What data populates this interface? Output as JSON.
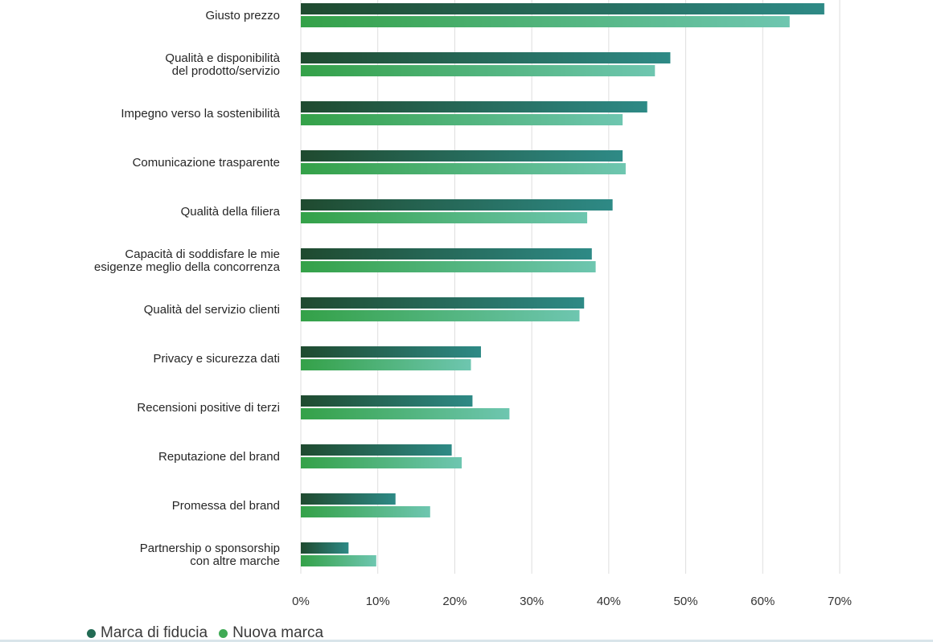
{
  "chart_data": {
    "type": "bar",
    "orientation": "horizontal",
    "categories": [
      "Giusto prezzo",
      "Qualità e disponibilità\ndel prodotto/servizio",
      "Impegno verso la sostenibilità",
      "Comunicazione trasparente",
      "Qualità della filiera",
      "Capacità di soddisfare le mie\nesigenze meglio della concorrenza",
      "Qualità del servizio clienti",
      "Privacy e sicurezza dati",
      "Recensioni positive di terzi",
      "Reputazione del brand",
      "Promessa del brand",
      "Partnership o sponsorship\ncon altre marche"
    ],
    "series": [
      {
        "name": "Marca di fiducia",
        "color": "#226b54",
        "values": [
          68,
          48,
          45,
          41.8,
          40.5,
          37.8,
          36.8,
          23.4,
          22.3,
          19.6,
          12.3,
          6.2
        ]
      },
      {
        "name": "Nuova marca",
        "color": "#3faa55",
        "values": [
          63.5,
          46,
          41.8,
          42.2,
          37.2,
          38.3,
          36.2,
          22.1,
          27.1,
          20.9,
          16.8,
          9.8
        ]
      }
    ],
    "xlim": [
      0,
      70
    ],
    "x_ticks": [
      "0%",
      "10%",
      "20%",
      "30%",
      "40%",
      "50%",
      "60%",
      "70%"
    ],
    "grid": true,
    "legend_position": "bottom-left"
  }
}
